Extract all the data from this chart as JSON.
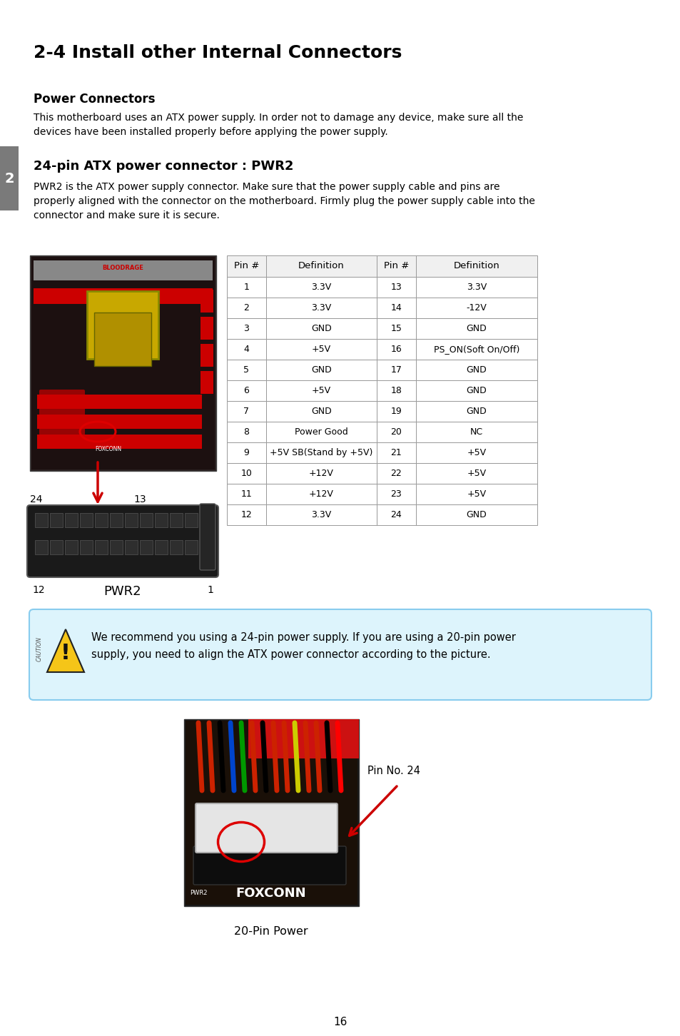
{
  "title": "2-4 Install other Internal Connectors",
  "section_label": "2",
  "section_bg": "#7a7a7a",
  "power_connectors_title": "Power Connectors",
  "power_connectors_body1": "This motherboard uses an ATX power supply. In order not to damage any device, make sure all the",
  "power_connectors_body2": "devices have been installed properly before applying the power supply.",
  "pin_section_title": "24-pin ATX power connector : PWR2",
  "pin_section_body1": "PWR2 is the ATX power supply connector. Make sure that the power supply cable and pins are",
  "pin_section_body2": "properly aligned with the connector on the motherboard. Firmly plug the power supply cable into the",
  "pin_section_body3": "connector and make sure it is secure.",
  "table_headers": [
    "Pin #",
    "Definition",
    "Pin #",
    "Definition"
  ],
  "table_data": [
    [
      "1",
      "3.3V",
      "13",
      "3.3V"
    ],
    [
      "2",
      "3.3V",
      "14",
      "-12V"
    ],
    [
      "3",
      "GND",
      "15",
      "GND"
    ],
    [
      "4",
      "+5V",
      "16",
      "PS_ON(Soft On/Off)"
    ],
    [
      "5",
      "GND",
      "17",
      "GND"
    ],
    [
      "6",
      "+5V",
      "18",
      "GND"
    ],
    [
      "7",
      "GND",
      "19",
      "GND"
    ],
    [
      "8",
      "Power Good",
      "20",
      "NC"
    ],
    [
      "9",
      "+5V SB(Stand by +5V)",
      "21",
      "+5V"
    ],
    [
      "10",
      "+12V",
      "22",
      "+5V"
    ],
    [
      "11",
      "+12V",
      "23",
      "+5V"
    ],
    [
      "12",
      "3.3V",
      "24",
      "GND"
    ]
  ],
  "connector_label_PWR2": "PWR2",
  "caution_text1": "We recommend you using a 24-pin power supply. If you are using a 20-pin power",
  "caution_text2": "supply, you need to align the ATX power connector according to the picture.",
  "pin24_label": "Pin No. 24",
  "bottom_label": "20-Pin Power",
  "page_number": "16",
  "bg_color": "#ffffff",
  "text_color": "#000000",
  "table_border": "#999999",
  "caution_box_bg": "#ddf4fc",
  "caution_box_border": "#88ccee"
}
